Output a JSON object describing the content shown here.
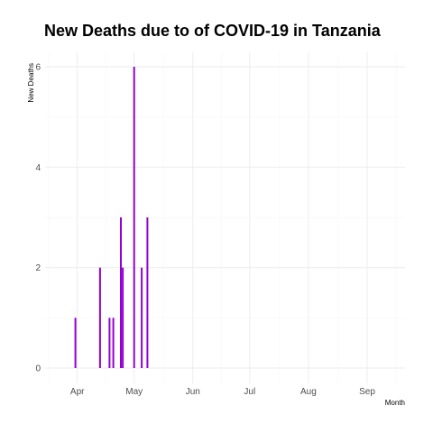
{
  "chart_data": {
    "type": "bar",
    "title": "New Deaths due to of COVID-19 in Tanzania",
    "xlabel": "Month",
    "ylabel": "New Deaths",
    "x_tick_labels": [
      "Apr",
      "May",
      "Jun",
      "Jul",
      "Aug",
      "Sep"
    ],
    "x_ticks": [
      "2020-04-01",
      "2020-05-01",
      "2020-06-01",
      "2020-07-01",
      "2020-08-01",
      "2020-09-01"
    ],
    "xlim": [
      "2020-03-15",
      "2020-09-21"
    ],
    "y_ticks": [
      0,
      2,
      4,
      6
    ],
    "ylim": [
      0,
      6
    ],
    "grid": true,
    "legend": "none",
    "bar_color": "#9400d3",
    "series": [
      {
        "x": [
          "2020-03-31",
          "2020-04-13",
          "2020-04-18",
          "2020-04-20",
          "2020-04-24",
          "2020-04-25",
          "2020-05-01",
          "2020-05-05",
          "2020-05-08"
        ],
        "values": [
          1,
          2,
          1,
          1,
          3,
          2,
          6,
          2,
          3
        ]
      }
    ]
  }
}
